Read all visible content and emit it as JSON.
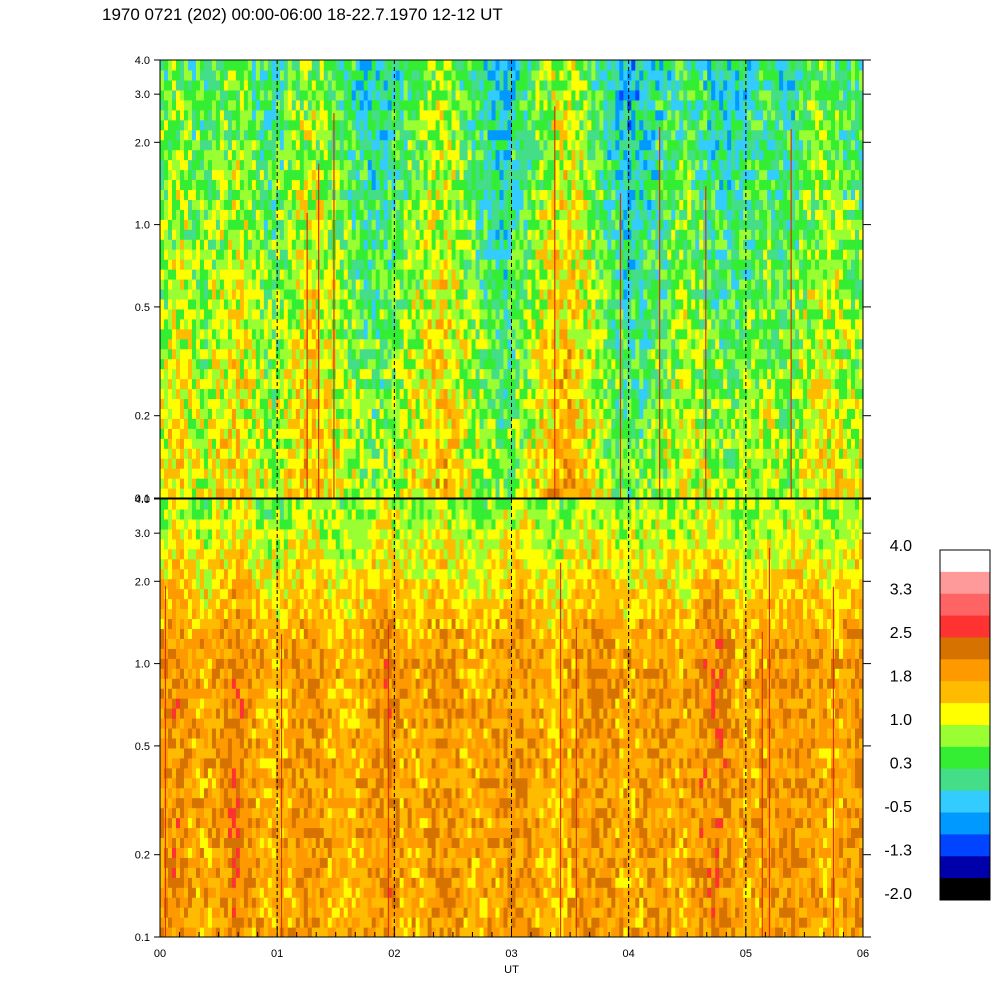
{
  "header": {
    "title": "1970 0721 (202) 00:00-06:00 18-22.7.1970  12-12 UT"
  },
  "chart_data": [
    {
      "type": "heatmap",
      "panel": "top",
      "xlabel": "",
      "xlim": [
        0,
        6
      ],
      "ylim": [
        0.1,
        4.0
      ],
      "yscale": "log",
      "y_ticks": [
        0.1,
        0.2,
        0.5,
        1.0,
        2.0,
        3.0,
        4.0
      ],
      "y_tick_labels": [
        "0.1",
        "0.2",
        "0.5",
        "1.0",
        "2.0",
        "3.0",
        "4.0"
      ],
      "dashed_vlines": [
        1,
        2,
        3,
        4,
        5
      ],
      "typical_level": "green/yellow (about 0.3 to 1.0); blue (about -0.5 to -1.3) near 1-4 at 01-02 and 03-05; orange streaks near 00.5, 01.5, 02.6, 03.0",
      "column_means": [
        0.8,
        1.1,
        0.9,
        0.7,
        1.0,
        1.2,
        0.9,
        0.6,
        0.7,
        1.1,
        1.3,
        1.0,
        0.8,
        0.5,
        0.3,
        0.4,
        0.6,
        0.9,
        1.2,
        1.3,
        0.9,
        0.6,
        0.3,
        0.2,
        0.5,
        0.9,
        1.3,
        1.5,
        1.2,
        0.8,
        0.4,
        0.1,
        0.2,
        0.4,
        0.6,
        0.8,
        0.6,
        0.4,
        0.3,
        0.5,
        0.7,
        0.6,
        0.4,
        0.8,
        1.0,
        0.9,
        0.7,
        0.6
      ]
    },
    {
      "type": "heatmap",
      "panel": "bottom",
      "xlabel": "UT",
      "xlim": [
        0,
        6
      ],
      "ylim": [
        0.1,
        4.0
      ],
      "yscale": "log",
      "x_ticks": [
        0,
        1,
        2,
        3,
        4,
        5,
        6
      ],
      "x_tick_labels": [
        "00",
        "01",
        "02",
        "03",
        "04",
        "05",
        "06"
      ],
      "y_ticks": [
        0.1,
        0.2,
        0.5,
        1.0,
        2.0,
        3.0,
        4.0
      ],
      "y_tick_labels": [
        "0.1",
        "0.2",
        "0.5",
        "1.0",
        "2.0",
        "3.0",
        "4.0"
      ],
      "dashed_vlines": [
        1,
        2,
        3,
        4,
        5
      ],
      "typical_level": "orange (about 1.5 to 2.2) below 1.0; yellow/green (about 0.3 to 1.0) above 2.0",
      "column_means": [
        1.9,
        2.1,
        1.8,
        1.7,
        2.0,
        2.2,
        1.9,
        1.6,
        1.7,
        1.9,
        2.0,
        1.8,
        1.6,
        1.7,
        1.9,
        2.1,
        1.8,
        1.7,
        1.9,
        2.0,
        1.8,
        1.7,
        1.8,
        1.9,
        2.0,
        1.8,
        1.6,
        1.7,
        1.9,
        2.0,
        1.9,
        1.7,
        1.8,
        1.9,
        1.8,
        1.7,
        2.0,
        2.2,
        1.9,
        1.7,
        1.8,
        1.9,
        2.0,
        1.9,
        1.8,
        1.7,
        1.9,
        2.0
      ]
    }
  ],
  "colorbar": {
    "labels": [
      "4.0",
      "3.3",
      "2.5",
      "1.8",
      "1.0",
      "0.3",
      "-0.5",
      "-1.3",
      "-2.0"
    ],
    "levels_top_to_bottom": [
      "#ffffff",
      "#ff9a9a",
      "#ff6464",
      "#ff3232",
      "#d67200",
      "#ff9900",
      "#ffbb00",
      "#ffff00",
      "#99ff33",
      "#33ee33",
      "#44dd88",
      "#33ccff",
      "#0099ff",
      "#0044ff",
      "#0000aa",
      "#000000"
    ],
    "range": [
      -2.0,
      4.0
    ]
  }
}
